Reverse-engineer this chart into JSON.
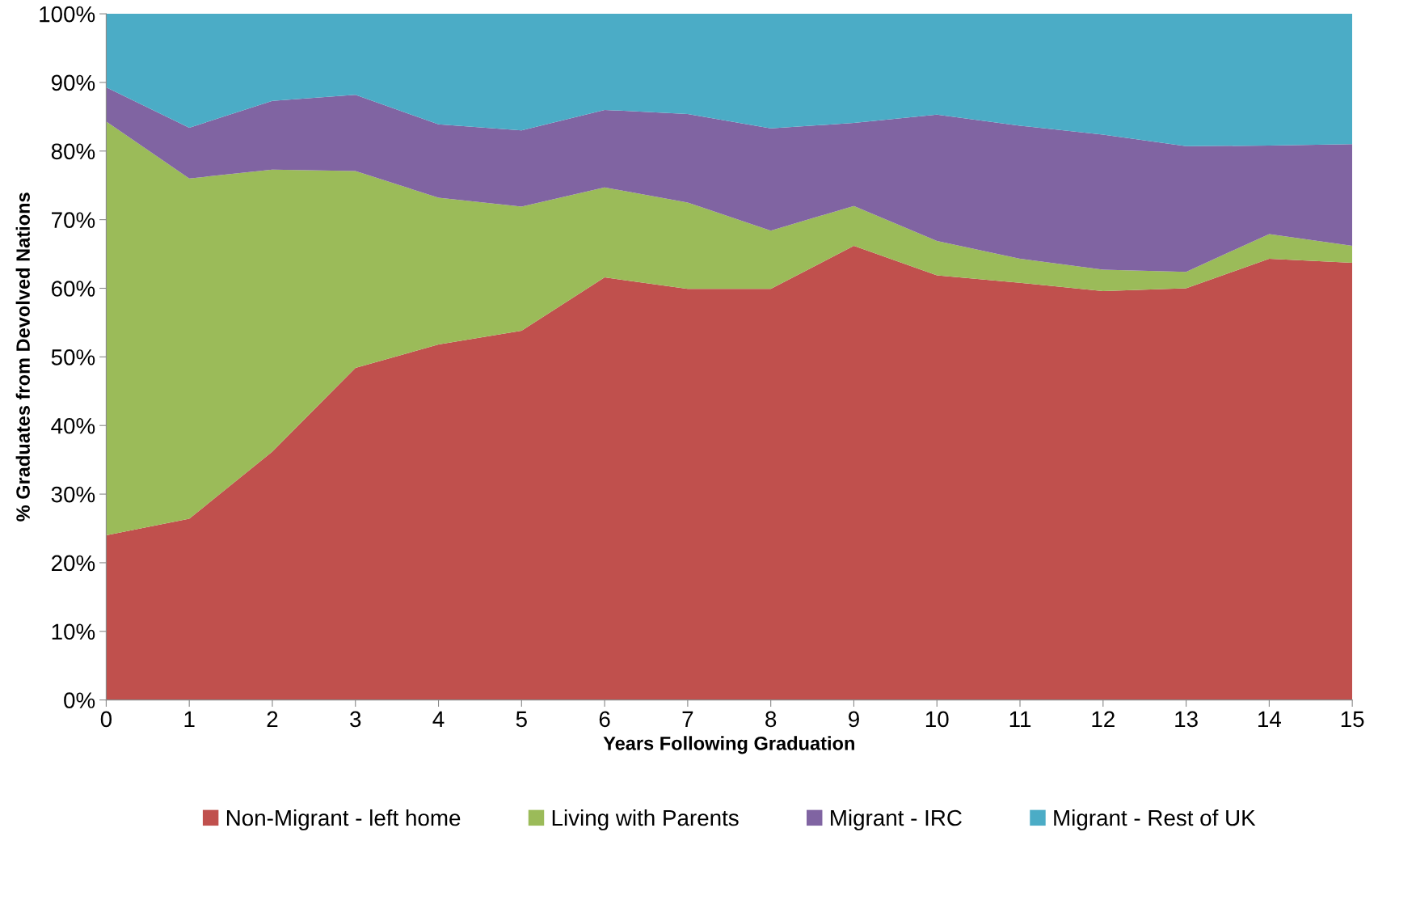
{
  "chart_data": {
    "type": "area",
    "stacked": true,
    "xlabel": "Years Following Graduation",
    "ylabel": "% Graduates from Devolved Nations",
    "x": [
      0,
      1,
      2,
      3,
      4,
      5,
      6,
      7,
      8,
      9,
      10,
      11,
      12,
      13,
      14,
      15
    ],
    "series": [
      {
        "name": "Non-Migrant - left home",
        "color": "#c0504d",
        "values": [
          24.0,
          26.4,
          36.2,
          48.4,
          51.8,
          53.8,
          61.6,
          59.9,
          59.9,
          66.2,
          61.9,
          60.8,
          59.6,
          60.0,
          64.3,
          63.7
        ]
      },
      {
        "name": "Living with Parents",
        "color": "#9bbb59",
        "values": [
          60.3,
          49.6,
          41.1,
          28.7,
          21.4,
          18.1,
          13.1,
          12.6,
          8.5,
          5.8,
          5.0,
          3.5,
          3.1,
          2.4,
          3.6,
          2.5
        ]
      },
      {
        "name": "Migrant - IRC",
        "color": "#8064a2",
        "values": [
          5.0,
          7.4,
          10.0,
          11.1,
          10.7,
          11.1,
          11.3,
          12.9,
          14.9,
          12.1,
          18.4,
          19.4,
          19.7,
          18.3,
          12.9,
          14.8
        ]
      },
      {
        "name": "Migrant - Rest of UK",
        "color": "#4bacc6",
        "values": [
          10.7,
          16.6,
          12.7,
          11.8,
          16.1,
          17.0,
          14.0,
          14.6,
          16.7,
          15.9,
          14.7,
          16.3,
          17.6,
          19.3,
          19.2,
          19.0
        ]
      }
    ],
    "xlim": [
      0,
      15
    ],
    "xticks": [
      0,
      1,
      2,
      3,
      4,
      5,
      6,
      7,
      8,
      9,
      10,
      11,
      12,
      13,
      14,
      15
    ],
    "ylim": [
      0,
      100
    ],
    "yticks": [
      {
        "value": 0,
        "label": "0%"
      },
      {
        "value": 10,
        "label": "10%"
      },
      {
        "value": 20,
        "label": "20%"
      },
      {
        "value": 30,
        "label": "30%"
      },
      {
        "value": 40,
        "label": "40%"
      },
      {
        "value": 50,
        "label": "50%"
      },
      {
        "value": 60,
        "label": "60%"
      },
      {
        "value": 70,
        "label": "70%"
      },
      {
        "value": 80,
        "label": "80%"
      },
      {
        "value": 90,
        "label": "90%"
      },
      {
        "value": 100,
        "label": "100%"
      }
    ],
    "grid": false,
    "legend": "bottom"
  }
}
